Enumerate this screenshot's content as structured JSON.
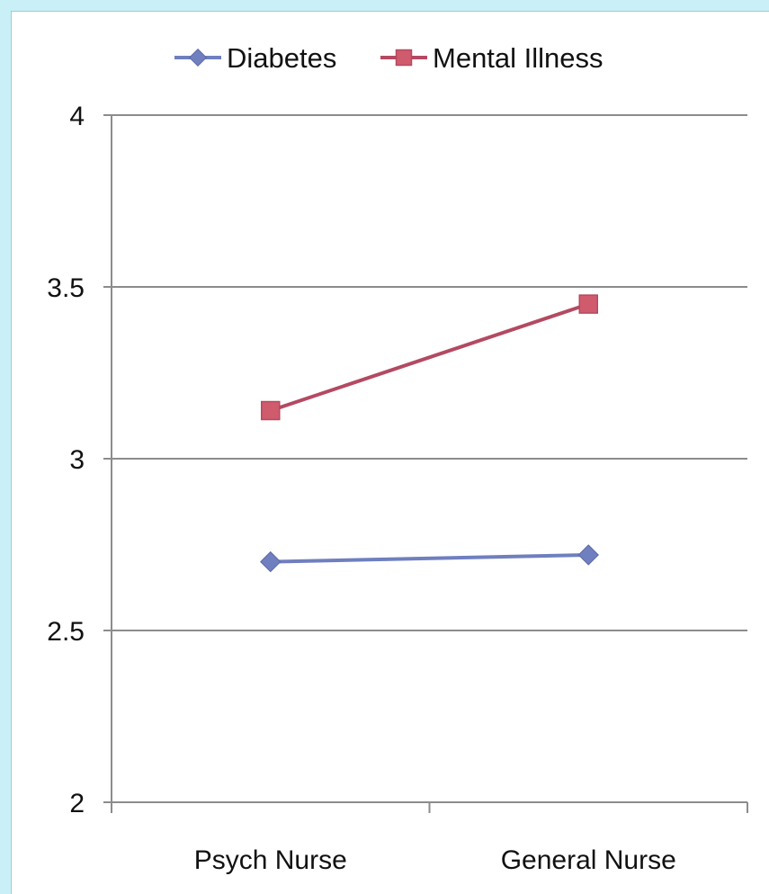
{
  "chart_data": {
    "type": "line",
    "title": "",
    "xlabel": "",
    "ylabel": "",
    "categories": [
      "Psych Nurse",
      "General Nurse"
    ],
    "ylim": [
      2,
      4
    ],
    "yticks": [
      "2",
      "2.5",
      "3",
      "3.5",
      "4"
    ],
    "grid": "horizontal",
    "legend_position": "top",
    "series": [
      {
        "name": "Diabetes",
        "values": [
          2.7,
          2.72
        ],
        "color": "#6f7fbf",
        "marker": "diamond"
      },
      {
        "name": "Mental Illness",
        "values": [
          3.14,
          3.45
        ],
        "color": "#b34a62",
        "marker": "square",
        "marker_fill": "#cf5b6d"
      }
    ]
  }
}
